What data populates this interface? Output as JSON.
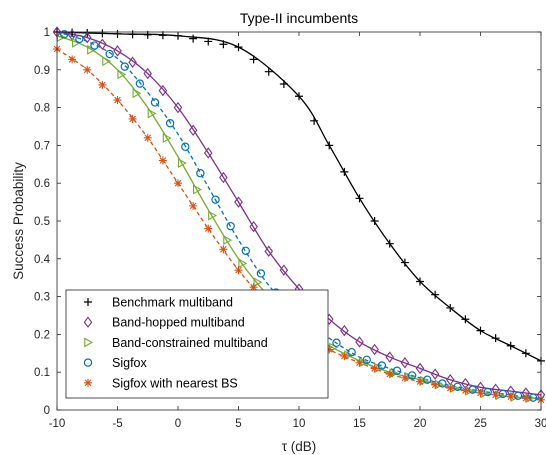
{
  "chart_data": {
    "type": "line",
    "title": "Type-II incumbents",
    "xlabel": "τ (dB)",
    "ylabel": "Success Probability",
    "xlim": [
      -10,
      30
    ],
    "ylim": [
      0,
      1
    ],
    "xticks": [
      -10,
      -5,
      0,
      5,
      10,
      15,
      20,
      25,
      30
    ],
    "xtick_labels": [
      "-10",
      "-5",
      "0",
      "5",
      "10",
      "15",
      "20",
      "25",
      "30"
    ],
    "yticks": [
      0,
      0.1,
      0.2,
      0.3,
      0.4,
      0.5,
      0.6,
      0.7,
      0.8,
      0.9,
      1
    ],
    "ytick_labels": [
      "0",
      "0.1",
      "0.2",
      "0.3",
      "0.4",
      "0.5",
      "0.6",
      "0.7",
      "0.8",
      "0.9",
      "1"
    ],
    "grid": false,
    "legend_position": "bottom-left",
    "series": [
      {
        "name": "Benchmark multiband",
        "color": "#000000",
        "marker": "plus",
        "line_style": "solid",
        "x": [
          -10,
          -5,
          0,
          5,
          10,
          12.5,
          15,
          17.5,
          20,
          22.5,
          25,
          27.5,
          30
        ],
        "y": [
          1.0,
          0.995,
          0.99,
          0.96,
          0.83,
          0.7,
          0.56,
          0.44,
          0.34,
          0.27,
          0.21,
          0.17,
          0.13
        ]
      },
      {
        "name": "Band-hopped multiband",
        "color": "#7E2F8E",
        "marker": "diamond",
        "line_style": "solid",
        "x": [
          -10,
          -7.5,
          -5,
          -2.5,
          0,
          2.5,
          5,
          7.5,
          10,
          12.5,
          15,
          17.5,
          20,
          22.5,
          25,
          27.5,
          30
        ],
        "y": [
          1.0,
          0.985,
          0.95,
          0.89,
          0.8,
          0.68,
          0.55,
          0.42,
          0.32,
          0.24,
          0.18,
          0.14,
          0.11,
          0.08,
          0.06,
          0.05,
          0.04
        ]
      },
      {
        "name": "Band-constrained multiband",
        "color": "#77AC30",
        "marker": "triangle-right",
        "line_style": "solid",
        "x": [
          -10,
          -7.5,
          -5,
          -2.5,
          0,
          2.5,
          5,
          7.5,
          10,
          12.5,
          15,
          17.5,
          20,
          22.5,
          25,
          27.5,
          30
        ],
        "y": [
          0.99,
          0.96,
          0.9,
          0.8,
          0.67,
          0.53,
          0.4,
          0.3,
          0.22,
          0.17,
          0.13,
          0.1,
          0.08,
          0.06,
          0.045,
          0.035,
          0.03
        ]
      },
      {
        "name": "Sigfox",
        "color": "#0072BD",
        "marker": "circle",
        "line_style": "dashed",
        "x": [
          -10,
          -7.5,
          -5,
          -2.5,
          0,
          2.5,
          5,
          7.5,
          10,
          12.5,
          15,
          17.5,
          20,
          22.5,
          25,
          27.5,
          30
        ],
        "y": [
          1.0,
          0.975,
          0.93,
          0.84,
          0.73,
          0.59,
          0.45,
          0.33,
          0.25,
          0.19,
          0.14,
          0.11,
          0.085,
          0.065,
          0.05,
          0.04,
          0.03
        ]
      },
      {
        "name": "Sigfox with nearest BS",
        "color": "#D95319",
        "marker": "asterisk",
        "line_style": "dashed",
        "x": [
          -10,
          -7.5,
          -5,
          -2.5,
          0,
          2.5,
          5,
          7.5,
          10,
          12.5,
          15,
          17.5,
          20,
          22.5,
          25,
          27.5,
          30
        ],
        "y": [
          0.955,
          0.9,
          0.82,
          0.72,
          0.6,
          0.48,
          0.37,
          0.28,
          0.21,
          0.16,
          0.125,
          0.095,
          0.075,
          0.058,
          0.045,
          0.035,
          0.027
        ]
      }
    ]
  }
}
